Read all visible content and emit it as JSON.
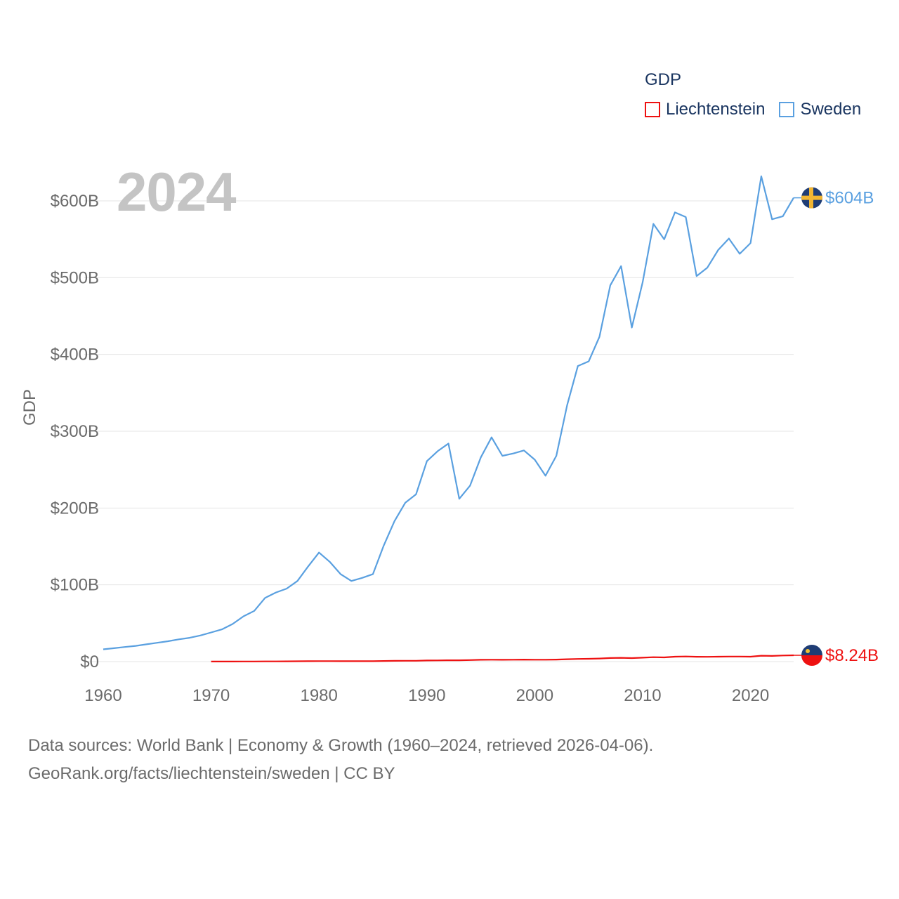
{
  "legend": {
    "title": "GDP",
    "items": [
      {
        "label": "Liechtenstein",
        "color": "#ee1111"
      },
      {
        "label": "Sweden",
        "color": "#5aa0e0"
      }
    ]
  },
  "year_label": "2024",
  "footer": {
    "line1": "Data sources: World Bank | Economy & Growth (1960–2024, retrieved 2026-04-06).",
    "line2": "GeoRank.org/facts/liechtenstein/sweden | CC BY"
  },
  "chart_data": {
    "type": "line",
    "title": "GDP",
    "xlabel": "",
    "ylabel": "GDP",
    "xlim": [
      1960,
      2024
    ],
    "ylim": [
      0,
      600
    ],
    "y_unit": "billion USD",
    "x_ticks": [
      1960,
      1970,
      1980,
      1990,
      2000,
      2010,
      2020
    ],
    "y_ticks": [
      {
        "value": 0,
        "label": "$0"
      },
      {
        "value": 100,
        "label": "$100B"
      },
      {
        "value": 200,
        "label": "$200B"
      },
      {
        "value": 300,
        "label": "$300B"
      },
      {
        "value": 400,
        "label": "$400B"
      },
      {
        "value": 500,
        "label": "$500B"
      },
      {
        "value": 600,
        "label": "$600B"
      }
    ],
    "grid": true,
    "legend_position": "top-right",
    "series": [
      {
        "name": "Sweden",
        "color": "#5aa0e0",
        "end_label": "$604B",
        "end_value": 604,
        "points": [
          [
            1960,
            16
          ],
          [
            1961,
            17.5
          ],
          [
            1962,
            19
          ],
          [
            1963,
            20.5
          ],
          [
            1964,
            22.5
          ],
          [
            1965,
            24.5
          ],
          [
            1966,
            26.5
          ],
          [
            1967,
            29
          ],
          [
            1968,
            31
          ],
          [
            1969,
            34
          ],
          [
            1970,
            38
          ],
          [
            1971,
            42
          ],
          [
            1972,
            49
          ],
          [
            1973,
            59
          ],
          [
            1974,
            66
          ],
          [
            1975,
            83
          ],
          [
            1976,
            90
          ],
          [
            1977,
            95
          ],
          [
            1978,
            105
          ],
          [
            1979,
            124
          ],
          [
            1980,
            142
          ],
          [
            1981,
            130
          ],
          [
            1982,
            114
          ],
          [
            1983,
            105
          ],
          [
            1984,
            109
          ],
          [
            1985,
            114
          ],
          [
            1986,
            151
          ],
          [
            1987,
            183
          ],
          [
            1988,
            207
          ],
          [
            1989,
            218
          ],
          [
            1990,
            261
          ],
          [
            1991,
            274
          ],
          [
            1992,
            284
          ],
          [
            1993,
            212
          ],
          [
            1994,
            229
          ],
          [
            1995,
            266
          ],
          [
            1996,
            292
          ],
          [
            1997,
            268
          ],
          [
            1998,
            271
          ],
          [
            1999,
            275
          ],
          [
            2000,
            263
          ],
          [
            2001,
            242
          ],
          [
            2002,
            268
          ],
          [
            2003,
            334
          ],
          [
            2004,
            385
          ],
          [
            2005,
            391
          ],
          [
            2006,
            423
          ],
          [
            2007,
            490
          ],
          [
            2008,
            515
          ],
          [
            2009,
            435
          ],
          [
            2010,
            494
          ],
          [
            2011,
            570
          ],
          [
            2012,
            550
          ],
          [
            2013,
            585
          ],
          [
            2014,
            579
          ],
          [
            2015,
            502
          ],
          [
            2016,
            513
          ],
          [
            2017,
            536
          ],
          [
            2018,
            551
          ],
          [
            2019,
            531
          ],
          [
            2020,
            545
          ],
          [
            2021,
            632
          ],
          [
            2022,
            576
          ],
          [
            2023,
            580
          ],
          [
            2024,
            604
          ]
        ]
      },
      {
        "name": "Liechtenstein",
        "color": "#ee1111",
        "end_label": "$8.24B",
        "end_value": 8.24,
        "points": [
          [
            1970,
            0.08
          ],
          [
            1971,
            0.1
          ],
          [
            1972,
            0.12
          ],
          [
            1973,
            0.16
          ],
          [
            1974,
            0.19
          ],
          [
            1975,
            0.25
          ],
          [
            1976,
            0.28
          ],
          [
            1977,
            0.33
          ],
          [
            1978,
            0.45
          ],
          [
            1979,
            0.55
          ],
          [
            1980,
            0.63
          ],
          [
            1981,
            0.6
          ],
          [
            1982,
            0.58
          ],
          [
            1983,
            0.56
          ],
          [
            1984,
            0.55
          ],
          [
            1985,
            0.57
          ],
          [
            1986,
            0.8
          ],
          [
            1987,
            1.0
          ],
          [
            1988,
            1.12
          ],
          [
            1989,
            1.14
          ],
          [
            1990,
            1.42
          ],
          [
            1991,
            1.6
          ],
          [
            1992,
            1.72
          ],
          [
            1993,
            1.73
          ],
          [
            1994,
            1.97
          ],
          [
            1995,
            2.35
          ],
          [
            1996,
            2.5
          ],
          [
            1997,
            2.36
          ],
          [
            1998,
            2.5
          ],
          [
            1999,
            2.61
          ],
          [
            2000,
            2.48
          ],
          [
            2001,
            2.48
          ],
          [
            2002,
            2.69
          ],
          [
            2003,
            3.07
          ],
          [
            2004,
            3.45
          ],
          [
            2005,
            3.66
          ],
          [
            2006,
            4.0
          ],
          [
            2007,
            4.66
          ],
          [
            2008,
            4.9
          ],
          [
            2009,
            4.58
          ],
          [
            2010,
            5.08
          ],
          [
            2011,
            5.74
          ],
          [
            2012,
            5.46
          ],
          [
            2013,
            6.39
          ],
          [
            2014,
            6.66
          ],
          [
            2015,
            6.27
          ],
          [
            2016,
            6.21
          ],
          [
            2017,
            6.4
          ],
          [
            2018,
            6.6
          ],
          [
            2019,
            6.55
          ],
          [
            2020,
            6.4
          ],
          [
            2021,
            7.7
          ],
          [
            2022,
            7.45
          ],
          [
            2023,
            8.0
          ],
          [
            2024,
            8.24
          ]
        ]
      }
    ]
  }
}
